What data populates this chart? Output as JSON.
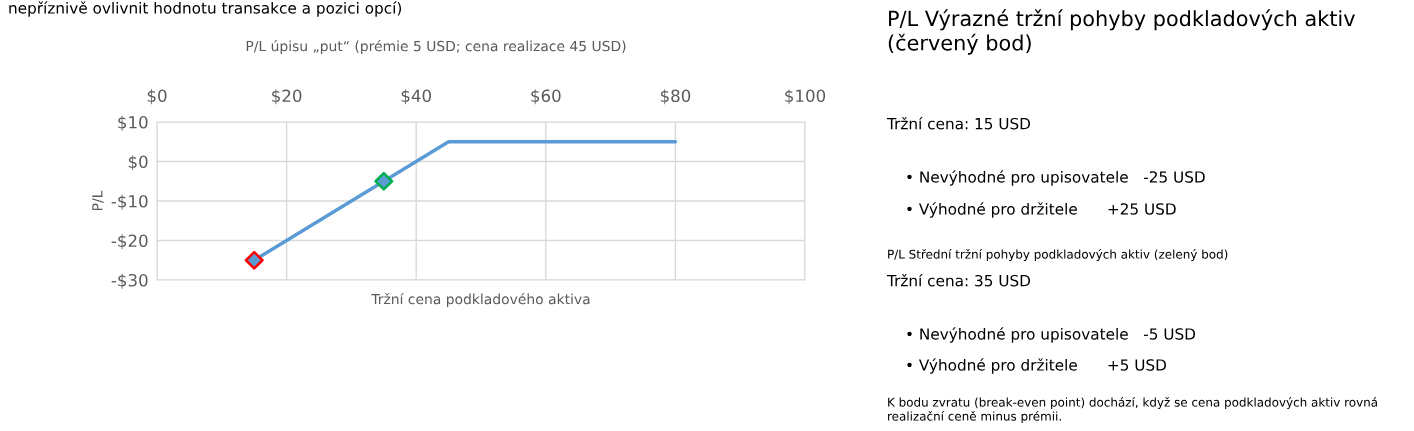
{
  "chart_data": [
    {
      "type": "line",
      "title": "P/L úpisu „put“ (prémie 5 USD; cena realizace 45 USD)",
      "xlabel": "Tržní cena podkladového aktiva",
      "ylabel": "P/L",
      "annotations": [
        "nepříznivě ovlivnit hodnotu transakce a pozici opcí)"
      ],
      "series": [
        {
          "type": "line",
          "color": "#5b9bd5",
          "x": [
            15,
            45,
            80
          ],
          "values": [
            -25,
            5,
            5
          ],
          "marker": "none"
        },
        {
          "type": "scatter",
          "color": "#5b9bd5",
          "colors": [
            "#ff0000",
            "#00b050"
          ],
          "x": [
            15,
            35
          ],
          "values": [
            -25,
            -5
          ],
          "marker": "diamond"
        }
      ],
      "xlim": [
        0,
        100
      ],
      "xticks": [
        {
          "value": 0,
          "label": "$0"
        },
        {
          "value": 20,
          "label": "$20"
        },
        {
          "value": 40,
          "label": "$40"
        },
        {
          "value": 60,
          "label": "$60"
        },
        {
          "value": 80,
          "label": "$80"
        },
        {
          "value": 100,
          "label": "$100"
        }
      ],
      "ylim": [
        -30,
        10
      ],
      "yticks": [
        {
          "value": -30,
          "label": "-$30"
        },
        {
          "value": -20,
          "label": "-$20"
        },
        {
          "value": -10,
          "label": "-$10"
        },
        {
          "value": 0,
          "label": "$0"
        },
        {
          "value": 10,
          "label": "$10"
        }
      ],
      "grid": true,
      "legend": false
    },
    {
      "type": "other",
      "title": "P/L Výrazné tržní pohyby podkladových aktiv (červený bod)",
      "annotations": [
        "Tržní cena: 15 USD",
        "• Nevýhodné pro upisovatele   -25 USD",
        "• Výhodné pro držitele      +25 USD",
        "P/L Střední tržní pohyby podkladových aktiv (zelený bod)",
        "Tržní cena: 35 USD",
        "• Nevýhodné pro upisovatele   -5 USD",
        "• Výhodné pro držitele      +5 USD",
        "K bodu zvratu (break-even point) dochází, když se cena podkladových aktiv rovná realizační ceně minus prémii."
      ]
    }
  ]
}
